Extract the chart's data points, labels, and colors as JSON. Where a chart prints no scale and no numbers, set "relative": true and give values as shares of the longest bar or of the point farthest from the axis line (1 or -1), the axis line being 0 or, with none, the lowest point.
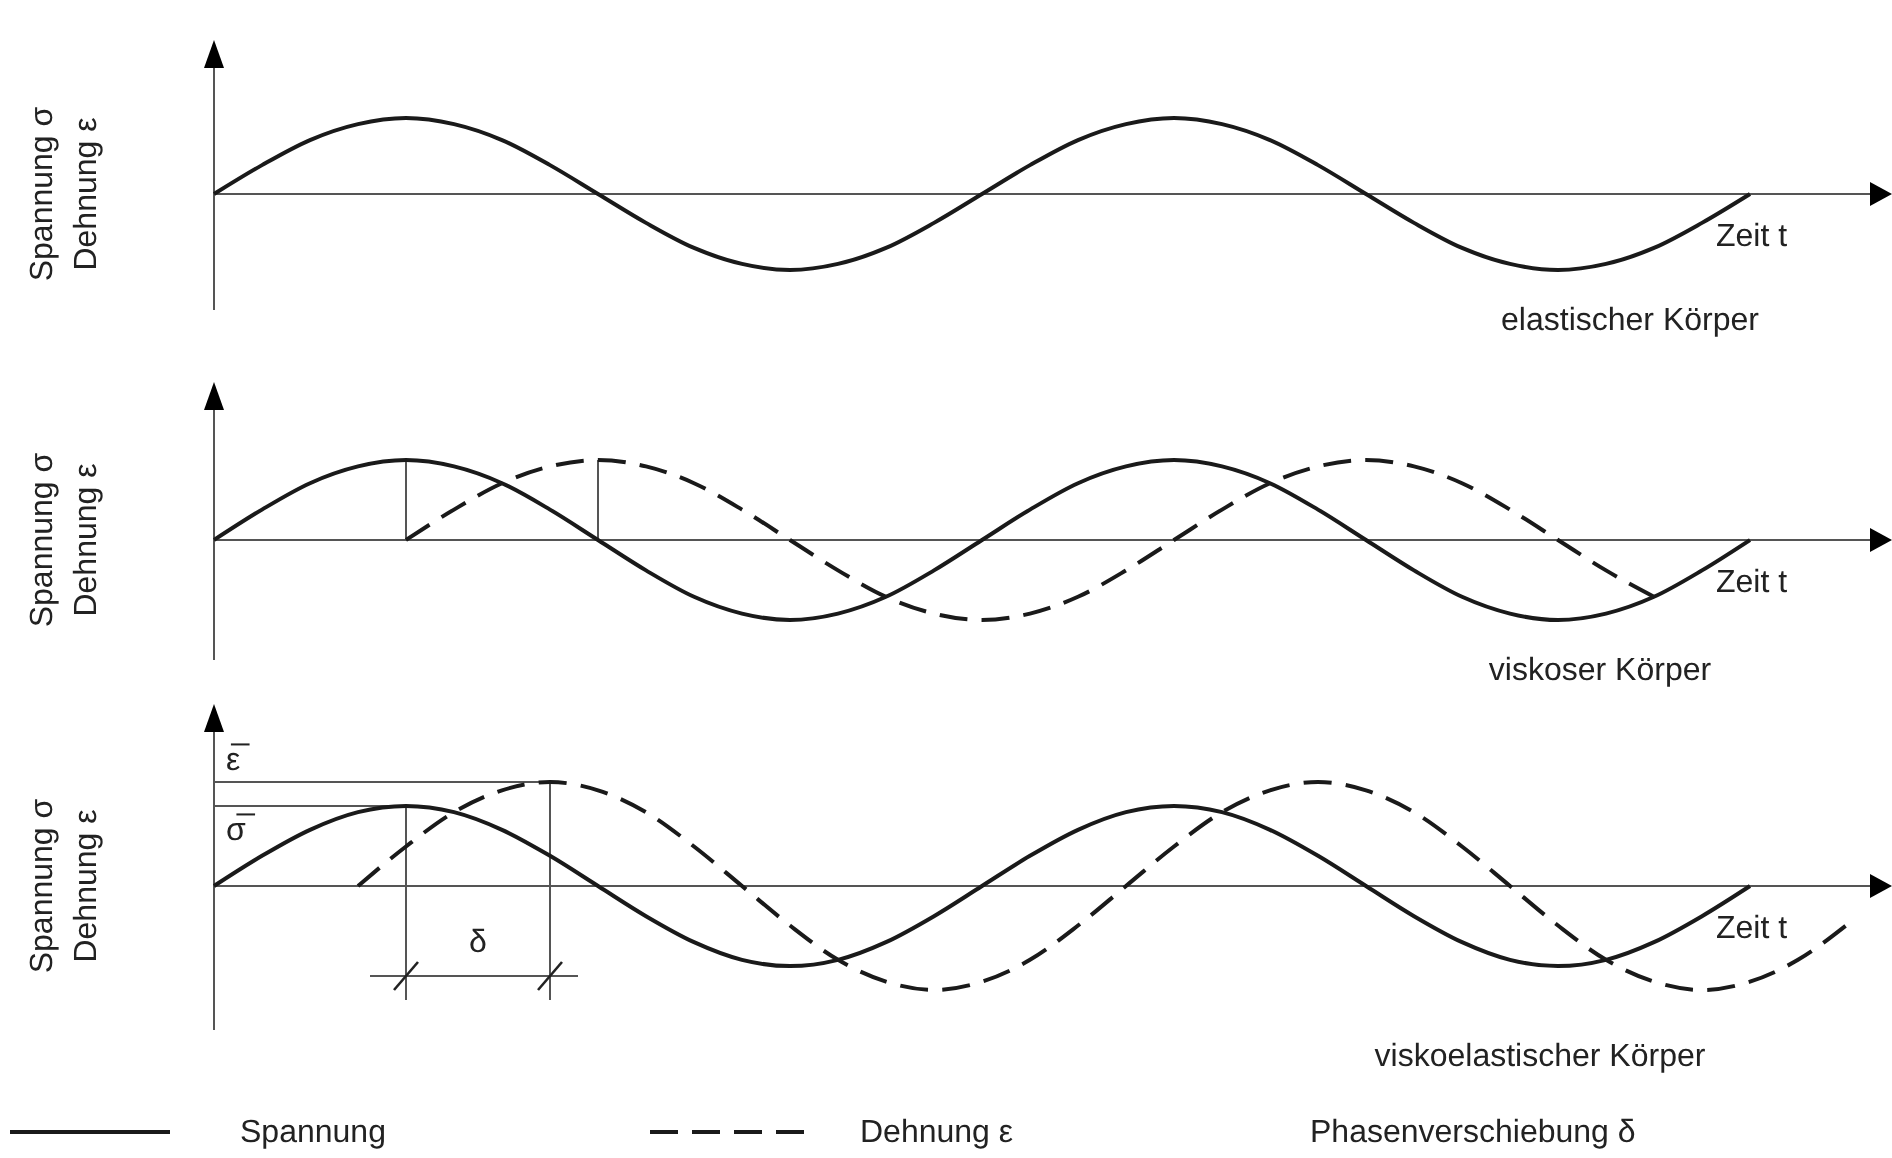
{
  "chart_data": [
    {
      "type": "line",
      "title": "elastischer Körper",
      "xlabel": "Zeit t",
      "ylabel": "Spannung σ\nDehnung ε",
      "relative": true,
      "categories": [
        null,
        null,
        null,
        null,
        null,
        null,
        null,
        null,
        null,
        null,
        null,
        null,
        null,
        null,
        null,
        null,
        null,
        null,
        null,
        null,
        null,
        null,
        null,
        null,
        null,
        null,
        null,
        null,
        null,
        null,
        null,
        null,
        null
      ],
      "series": [
        {
          "color": "#1a1a1a",
          "line_style": "solid",
          "values": [
            0,
            0.38,
            0.71,
            0.92,
            1,
            0.92,
            0.71,
            0.38,
            0,
            -0.38,
            -0.71,
            -0.92,
            -1,
            -0.92,
            -0.71,
            -0.38,
            0,
            0.38,
            0.71,
            0.92,
            1,
            0.92,
            0.71,
            0.38,
            0,
            -0.38,
            -0.71,
            -0.92,
            -1,
            -0.92,
            -0.71,
            -0.38,
            0
          ]
        }
      ]
    },
    {
      "type": "line",
      "title": "viskoser Körper",
      "xlabel": "Zeit t",
      "ylabel": "Spannung σ\nDehnung ε",
      "relative": true,
      "categories": [
        null,
        null,
        null,
        null,
        null,
        null,
        null,
        null,
        null,
        null,
        null,
        null,
        null,
        null,
        null,
        null,
        null,
        null,
        null,
        null,
        null,
        null,
        null,
        null,
        null,
        null,
        null,
        null,
        null,
        null,
        null,
        null,
        null
      ],
      "series": [
        {
          "color": "#1a1a1a",
          "line_style": "solid",
          "values": [
            0,
            0.38,
            0.71,
            0.92,
            1,
            0.92,
            0.71,
            0.38,
            0,
            -0.38,
            -0.71,
            -0.92,
            -1,
            -0.92,
            -0.71,
            -0.38,
            0,
            0.38,
            0.71,
            0.92,
            1,
            0.92,
            0.71,
            0.38,
            0,
            -0.38,
            -0.71,
            -0.92,
            -1,
            -0.92,
            -0.71,
            -0.38,
            0
          ]
        },
        {
          "color": "#1a1a1a",
          "line_style": "dashed",
          "values": [
            null,
            null,
            null,
            null,
            0,
            0.38,
            0.71,
            0.92,
            1,
            0.92,
            0.71,
            0.38,
            0,
            -0.38,
            -0.71,
            -0.92,
            -1,
            -0.92,
            -0.71,
            -0.38,
            0,
            0.38,
            0.71,
            0.92,
            1,
            0.92,
            0.71,
            0.38,
            0,
            -0.38,
            -0.71,
            null,
            null
          ]
        }
      ]
    },
    {
      "type": "line",
      "title": "viskoelastischer Körper",
      "xlabel": "Zeit t",
      "ylabel": "Spannung σ\nDehnung ε",
      "relative": true,
      "legend": "bottom",
      "categories": [
        null,
        null,
        null,
        null,
        null,
        null,
        null,
        null,
        null,
        null,
        null,
        null,
        null,
        null,
        null,
        null,
        null,
        null,
        null,
        null,
        null,
        null,
        null,
        null,
        null,
        null,
        null,
        null,
        null,
        null,
        null,
        null,
        null,
        null,
        null
      ],
      "annotations": [
        "ε̅",
        "σ̅",
        "δ",
        "Phasenverschiebung δ"
      ],
      "series": [
        {
          "name": "Spannung",
          "color": "#1a1a1a",
          "line_style": "solid",
          "values": [
            0,
            0.29,
            0.54,
            0.71,
            0.77,
            0.71,
            0.54,
            0.29,
            0,
            -0.29,
            -0.54,
            -0.71,
            -0.77,
            -0.71,
            -0.54,
            -0.29,
            0,
            0.29,
            0.54,
            0.71,
            0.77,
            0.71,
            0.54,
            0.29,
            0,
            -0.29,
            -0.54,
            -0.71,
            -0.77,
            -0.71,
            -0.54,
            -0.29,
            0,
            null,
            null
          ]
        },
        {
          "name": "Dehnung ε",
          "color": "#1a1a1a",
          "line_style": "dashed",
          "values": [
            null,
            null,
            null,
            0,
            0.38,
            0.71,
            0.92,
            1,
            0.92,
            0.71,
            0.38,
            0,
            -0.38,
            -0.71,
            -0.92,
            -1,
            -0.92,
            -0.71,
            -0.38,
            0,
            0.38,
            0.71,
            0.92,
            1,
            0.92,
            0.71,
            0.38,
            0,
            -0.38,
            -0.71,
            -0.92,
            -1,
            -0.92,
            -0.71,
            -0.38
          ]
        }
      ]
    }
  ]
}
